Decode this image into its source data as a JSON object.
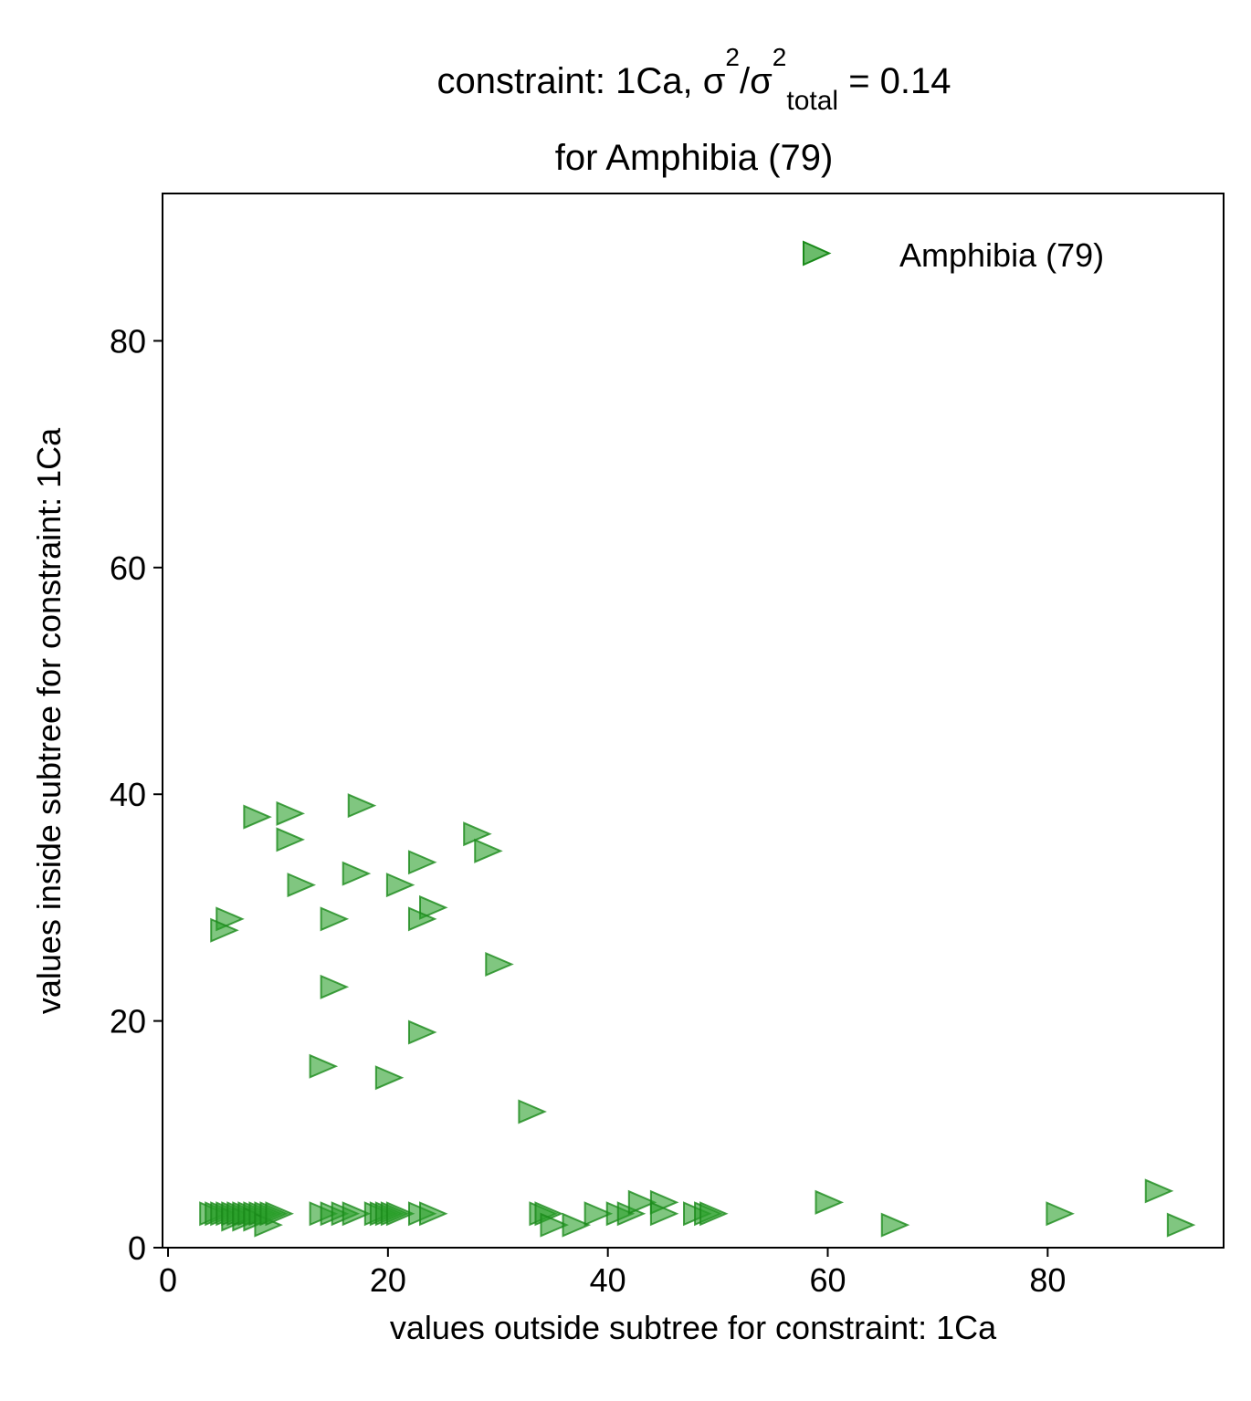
{
  "chart_data": {
    "type": "scatter",
    "title_prefix": "constraint: 1Ca, σ",
    "title_sup1": "2",
    "title_mid": "/σ",
    "title_sup2": "2",
    "title_sub": "total",
    "title_suffix": " =  0.14",
    "title_line2": "for Amphibia (79)",
    "xlabel": "values outside subtree for constraint: 1Ca",
    "ylabel": "values inside subtree for constraint: 1Ca",
    "xlim": [
      -0.5,
      96
    ],
    "ylim": [
      0,
      93
    ],
    "xticks": [
      0,
      20,
      40,
      60,
      80
    ],
    "yticks": [
      0,
      20,
      40,
      60,
      80
    ],
    "marker": "triangle-right",
    "legend_position": "top-right",
    "color": "#2ca02c",
    "series": [
      {
        "name": "Amphibia (79)",
        "points": [
          [
            8,
            38
          ],
          [
            11,
            38.3
          ],
          [
            11,
            36
          ],
          [
            12,
            32
          ],
          [
            17.5,
            39
          ],
          [
            15,
            29
          ],
          [
            17,
            33
          ],
          [
            5.5,
            29
          ],
          [
            5,
            28
          ],
          [
            15,
            23
          ],
          [
            14,
            16
          ],
          [
            20,
            15
          ],
          [
            21,
            32
          ],
          [
            23,
            34
          ],
          [
            24,
            30
          ],
          [
            23,
            29
          ],
          [
            28,
            36.5
          ],
          [
            29,
            35
          ],
          [
            30,
            25
          ],
          [
            23,
            19
          ],
          [
            33,
            12
          ],
          [
            4,
            3
          ],
          [
            4.5,
            3
          ],
          [
            5,
            3
          ],
          [
            5.5,
            3
          ],
          [
            6,
            2.5
          ],
          [
            6,
            3
          ],
          [
            6.5,
            3
          ],
          [
            7,
            2.5
          ],
          [
            7,
            3
          ],
          [
            7.5,
            3
          ],
          [
            8,
            3
          ],
          [
            8,
            2.5
          ],
          [
            8.5,
            3
          ],
          [
            9,
            3
          ],
          [
            9,
            2
          ],
          [
            9.5,
            3
          ],
          [
            10,
            3
          ],
          [
            14,
            3
          ],
          [
            15,
            3
          ],
          [
            16,
            3
          ],
          [
            17,
            3
          ],
          [
            19,
            3
          ],
          [
            19.5,
            3
          ],
          [
            20,
            3
          ],
          [
            20.5,
            3
          ],
          [
            21,
            3
          ],
          [
            23,
            3
          ],
          [
            24,
            3
          ],
          [
            34,
            3
          ],
          [
            34.5,
            3
          ],
          [
            35,
            2
          ],
          [
            37,
            2
          ],
          [
            39,
            3
          ],
          [
            41,
            3
          ],
          [
            42,
            3
          ],
          [
            43,
            4
          ],
          [
            45,
            4
          ],
          [
            45,
            3
          ],
          [
            48,
            3
          ],
          [
            49,
            3
          ],
          [
            49.5,
            3
          ],
          [
            60,
            4
          ],
          [
            66,
            2
          ],
          [
            81,
            3
          ],
          [
            90,
            5
          ],
          [
            92,
            2
          ]
        ]
      }
    ]
  }
}
